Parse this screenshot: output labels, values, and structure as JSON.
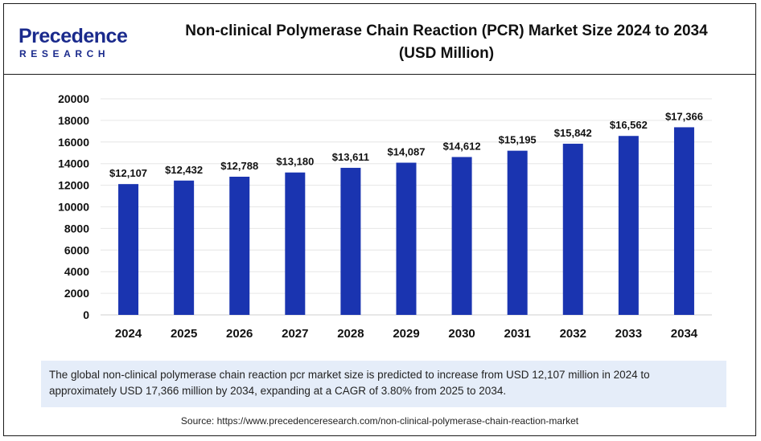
{
  "brand": {
    "name": "Precedence",
    "sub": "RESEARCH",
    "color": "#1a2a8c"
  },
  "title_line1": "Non-clinical Polymerase Chain Reaction (PCR) Market Size 2024 to 2034",
  "title_line2": "(USD Million)",
  "description": "The global non-clinical polymerase chain reaction pcr market  size is predicted to increase from USD 12,107 million in 2024 to approximately USD 17,366 million by 2034, expanding at a CAGR of 3.80% from 2025 to 2034.",
  "source": "Source: https://www.precedenceresearch.com/non-clinical-polymerase-chain-reaction-market",
  "chart_data": {
    "type": "bar",
    "categories": [
      "2024",
      "2025",
      "2026",
      "2027",
      "2028",
      "2029",
      "2030",
      "2031",
      "2032",
      "2033",
      "2034"
    ],
    "values": [
      12107,
      12432,
      12788,
      13180,
      13611,
      14087,
      14612,
      15195,
      15842,
      16562,
      17366
    ],
    "data_labels": [
      "$12,107",
      "$12,432",
      "$12,788",
      "$13,180",
      "$13,611",
      "$14,087",
      "$14,612",
      "$15,195",
      "$15,842",
      "$16,562",
      "$17,366"
    ],
    "yticks": [
      "0",
      "2000",
      "4000",
      "6000",
      "8000",
      "10000",
      "12000",
      "14000",
      "16000",
      "18000",
      "20000"
    ],
    "ylim": [
      0,
      20000
    ],
    "bar_color": "#1a34b0",
    "grid": true,
    "legend": "none"
  }
}
